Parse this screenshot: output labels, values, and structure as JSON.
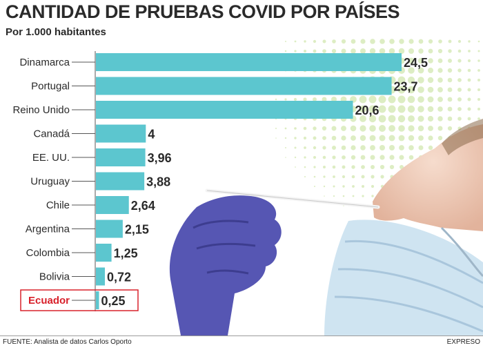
{
  "header": {
    "title": "CANTIDAD DE PRUEBAS COVID POR PAÍSES",
    "subtitle": "Por 1.000 habitantes"
  },
  "footer": {
    "source": "FUENTE: Analista de datos Carlos Oporto",
    "credit": "EXPRESO"
  },
  "colors": {
    "bar": "#5cc6cf",
    "text": "#2a2a2a",
    "highlight": "#d8202a",
    "axis": "#555555"
  },
  "chart_data": {
    "type": "bar",
    "orientation": "horizontal",
    "title": "CANTIDAD DE PRUEBAS COVID POR PAÍSES",
    "subtitle": "Por 1.000 habitantes",
    "categories": [
      "Dinamarca",
      "Portugal",
      "Reino Unido",
      "Canadá",
      "EE. UU.",
      "Uruguay",
      "Chile",
      "Argentina",
      "Colombia",
      "Bolivia",
      "Ecuador"
    ],
    "values": [
      24.5,
      23.7,
      20.6,
      4,
      3.96,
      3.88,
      2.64,
      2.15,
      1.25,
      0.72,
      0.25
    ],
    "value_labels": [
      "24,5",
      "23,7",
      "20,6",
      "4",
      "3,96",
      "3,88",
      "2,64",
      "2,15",
      "1,25",
      "0,72",
      "0,25"
    ],
    "highlight": "Ecuador",
    "xlim": [
      0,
      24.5
    ],
    "grid": false,
    "legend": "none"
  }
}
